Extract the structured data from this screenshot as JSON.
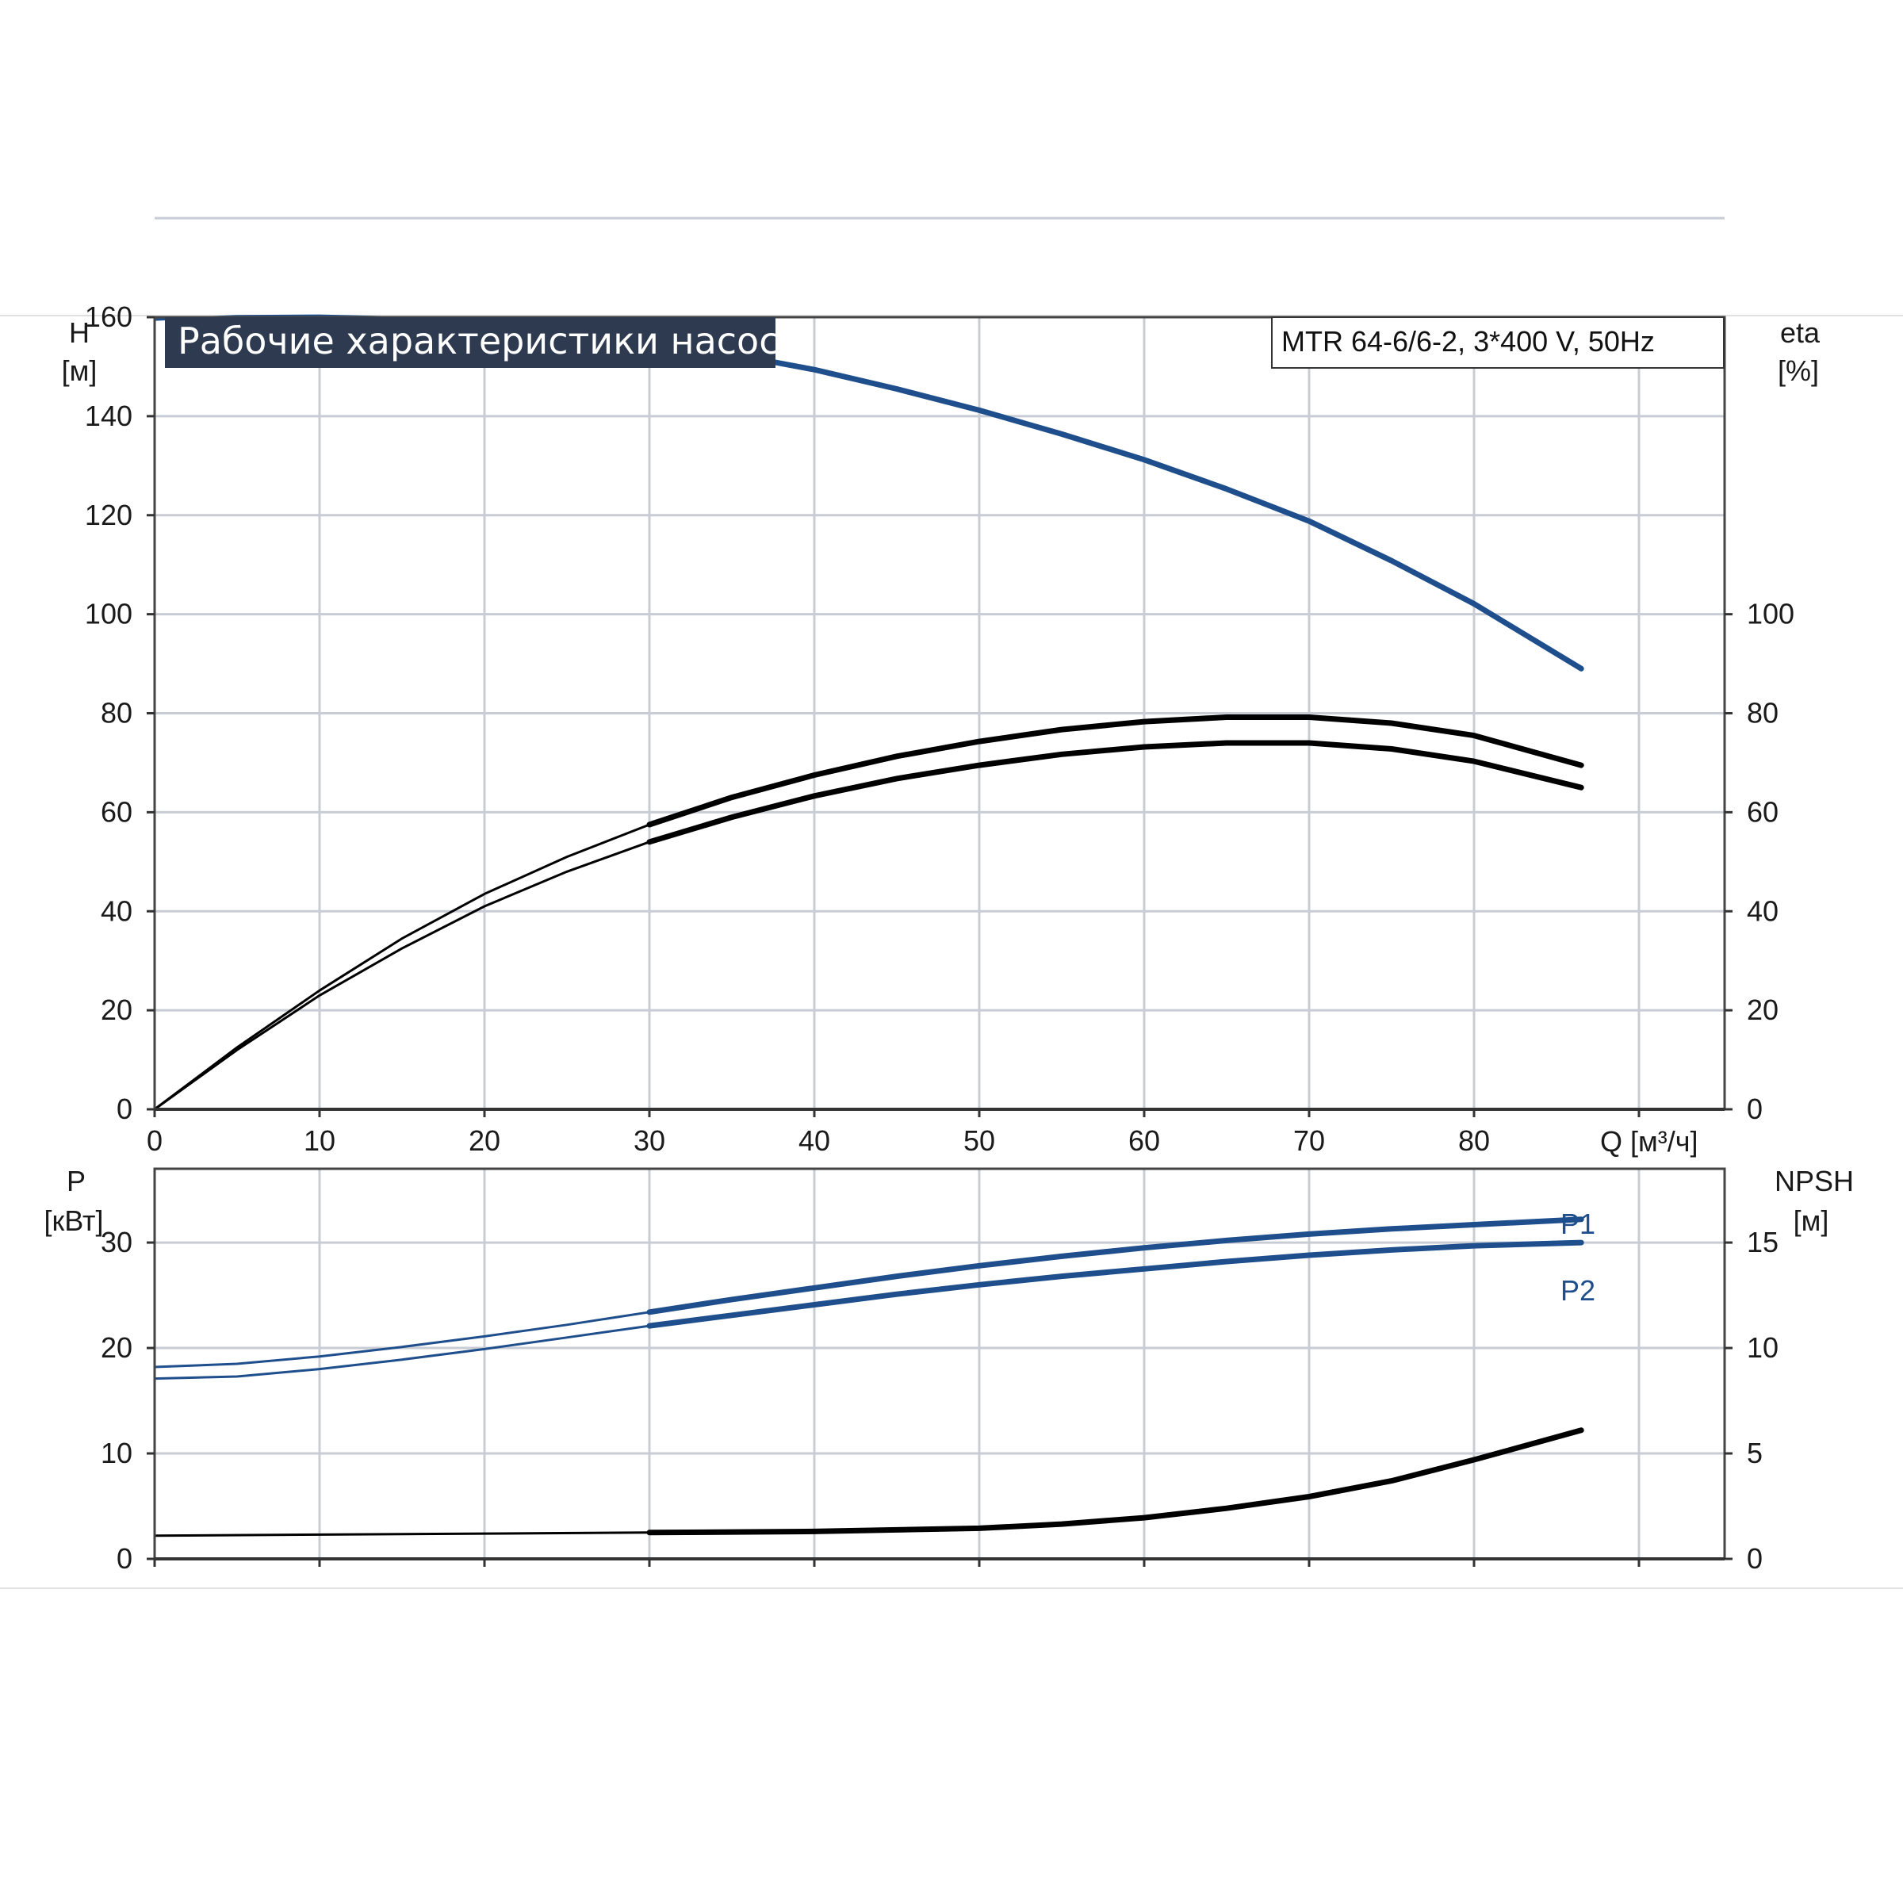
{
  "title": "Рабочие характеристики насоса",
  "model": "MTR 64-6/6-2, 3*400 V, 50Hz",
  "colors": {
    "blue": "#1f4e8c",
    "black": "#000000",
    "grid": "#c8ccd4",
    "frame": "#444444",
    "title_bg": "#2e3a4f"
  },
  "chart_data": [
    {
      "type": "line",
      "x_label": "Q [м³/ч]",
      "xlim": [
        0,
        95
      ],
      "x_ticks": [
        0,
        10,
        20,
        30,
        40,
        50,
        60,
        70,
        80
      ],
      "left_axis": {
        "label_top": "H",
        "label_unit": "[м]",
        "ylim": [
          0,
          160
        ],
        "ticks": [
          0,
          20,
          40,
          60,
          80,
          100,
          120,
          140,
          160
        ]
      },
      "right_axis": {
        "label_top": "eta",
        "label_unit": "[%]",
        "ylim": [
          0,
          160
        ],
        "ticks": [
          0,
          20,
          40,
          60,
          80,
          100
        ]
      },
      "grid": true,
      "series": [
        {
          "axis": "left",
          "color": "blue",
          "x": [
            0,
            5,
            10,
            15,
            20,
            25,
            30,
            35,
            40,
            45,
            50,
            55,
            60,
            65,
            70,
            75,
            80,
            86.5
          ],
          "y": [
            159.5,
            160.2,
            160.3,
            159.9,
            158.9,
            157.4,
            155.3,
            152.5,
            149.4,
            145.5,
            141.2,
            136.4,
            131.2,
            125.3,
            118.8,
            110.8,
            102.1,
            89
          ]
        },
        {
          "axis": "right",
          "color": "black",
          "x": [
            0,
            5,
            10,
            15,
            20,
            25,
            30,
            35,
            40,
            45,
            50,
            55,
            60,
            65,
            70,
            75,
            80,
            86.5
          ],
          "y": [
            0,
            12.5,
            24,
            34.5,
            43.5,
            51,
            57.5,
            63,
            67.5,
            71.3,
            74.3,
            76.7,
            78.3,
            79.2,
            79.2,
            78,
            75.5,
            69.5
          ]
        },
        {
          "axis": "right",
          "color": "black",
          "x": [
            0,
            5,
            10,
            15,
            20,
            25,
            30,
            35,
            40,
            45,
            50,
            55,
            60,
            65,
            70,
            75,
            80,
            86.5
          ],
          "y": [
            0,
            12,
            23,
            32.5,
            41,
            48,
            54,
            59,
            63.3,
            66.8,
            69.5,
            71.7,
            73.2,
            74,
            74,
            72.8,
            70.3,
            65
          ]
        }
      ]
    },
    {
      "type": "line",
      "x_label": "",
      "xlim": [
        0,
        95
      ],
      "left_axis": {
        "label_top": "P",
        "label_unit": "[кВт]",
        "ylim": [
          0,
          37
        ],
        "ticks": [
          0,
          10,
          20,
          30
        ]
      },
      "right_axis": {
        "label_top": "NPSH",
        "label_unit": "[м]",
        "ylim": [
          0,
          18.5
        ],
        "ticks": [
          0,
          5,
          10,
          15
        ]
      },
      "grid": true,
      "series": [
        {
          "name": "P1",
          "axis": "left",
          "color": "blue",
          "x": [
            0,
            5,
            10,
            15,
            20,
            25,
            30,
            35,
            40,
            45,
            50,
            55,
            60,
            65,
            70,
            75,
            80,
            86.5
          ],
          "y": [
            18.2,
            18.5,
            19.2,
            20.1,
            21.1,
            22.2,
            23.4,
            24.6,
            25.7,
            26.8,
            27.8,
            28.7,
            29.5,
            30.2,
            30.8,
            31.3,
            31.7,
            32.2
          ]
        },
        {
          "name": "P2",
          "axis": "left",
          "color": "blue",
          "x": [
            0,
            5,
            10,
            15,
            20,
            25,
            30,
            35,
            40,
            45,
            50,
            55,
            60,
            65,
            70,
            75,
            80,
            86.5
          ],
          "y": [
            17.1,
            17.3,
            18,
            18.9,
            19.9,
            21,
            22.1,
            23.1,
            24.1,
            25.1,
            26,
            26.8,
            27.5,
            28.2,
            28.8,
            29.3,
            29.7,
            30
          ]
        },
        {
          "axis": "right",
          "color": "black",
          "x": [
            0,
            10,
            20,
            30,
            40,
            50,
            55,
            60,
            65,
            70,
            75,
            80,
            86.5
          ],
          "y": [
            1.1,
            1.15,
            1.2,
            1.25,
            1.3,
            1.45,
            1.65,
            1.95,
            2.4,
            2.95,
            3.7,
            4.7,
            6.1
          ]
        }
      ]
    }
  ]
}
